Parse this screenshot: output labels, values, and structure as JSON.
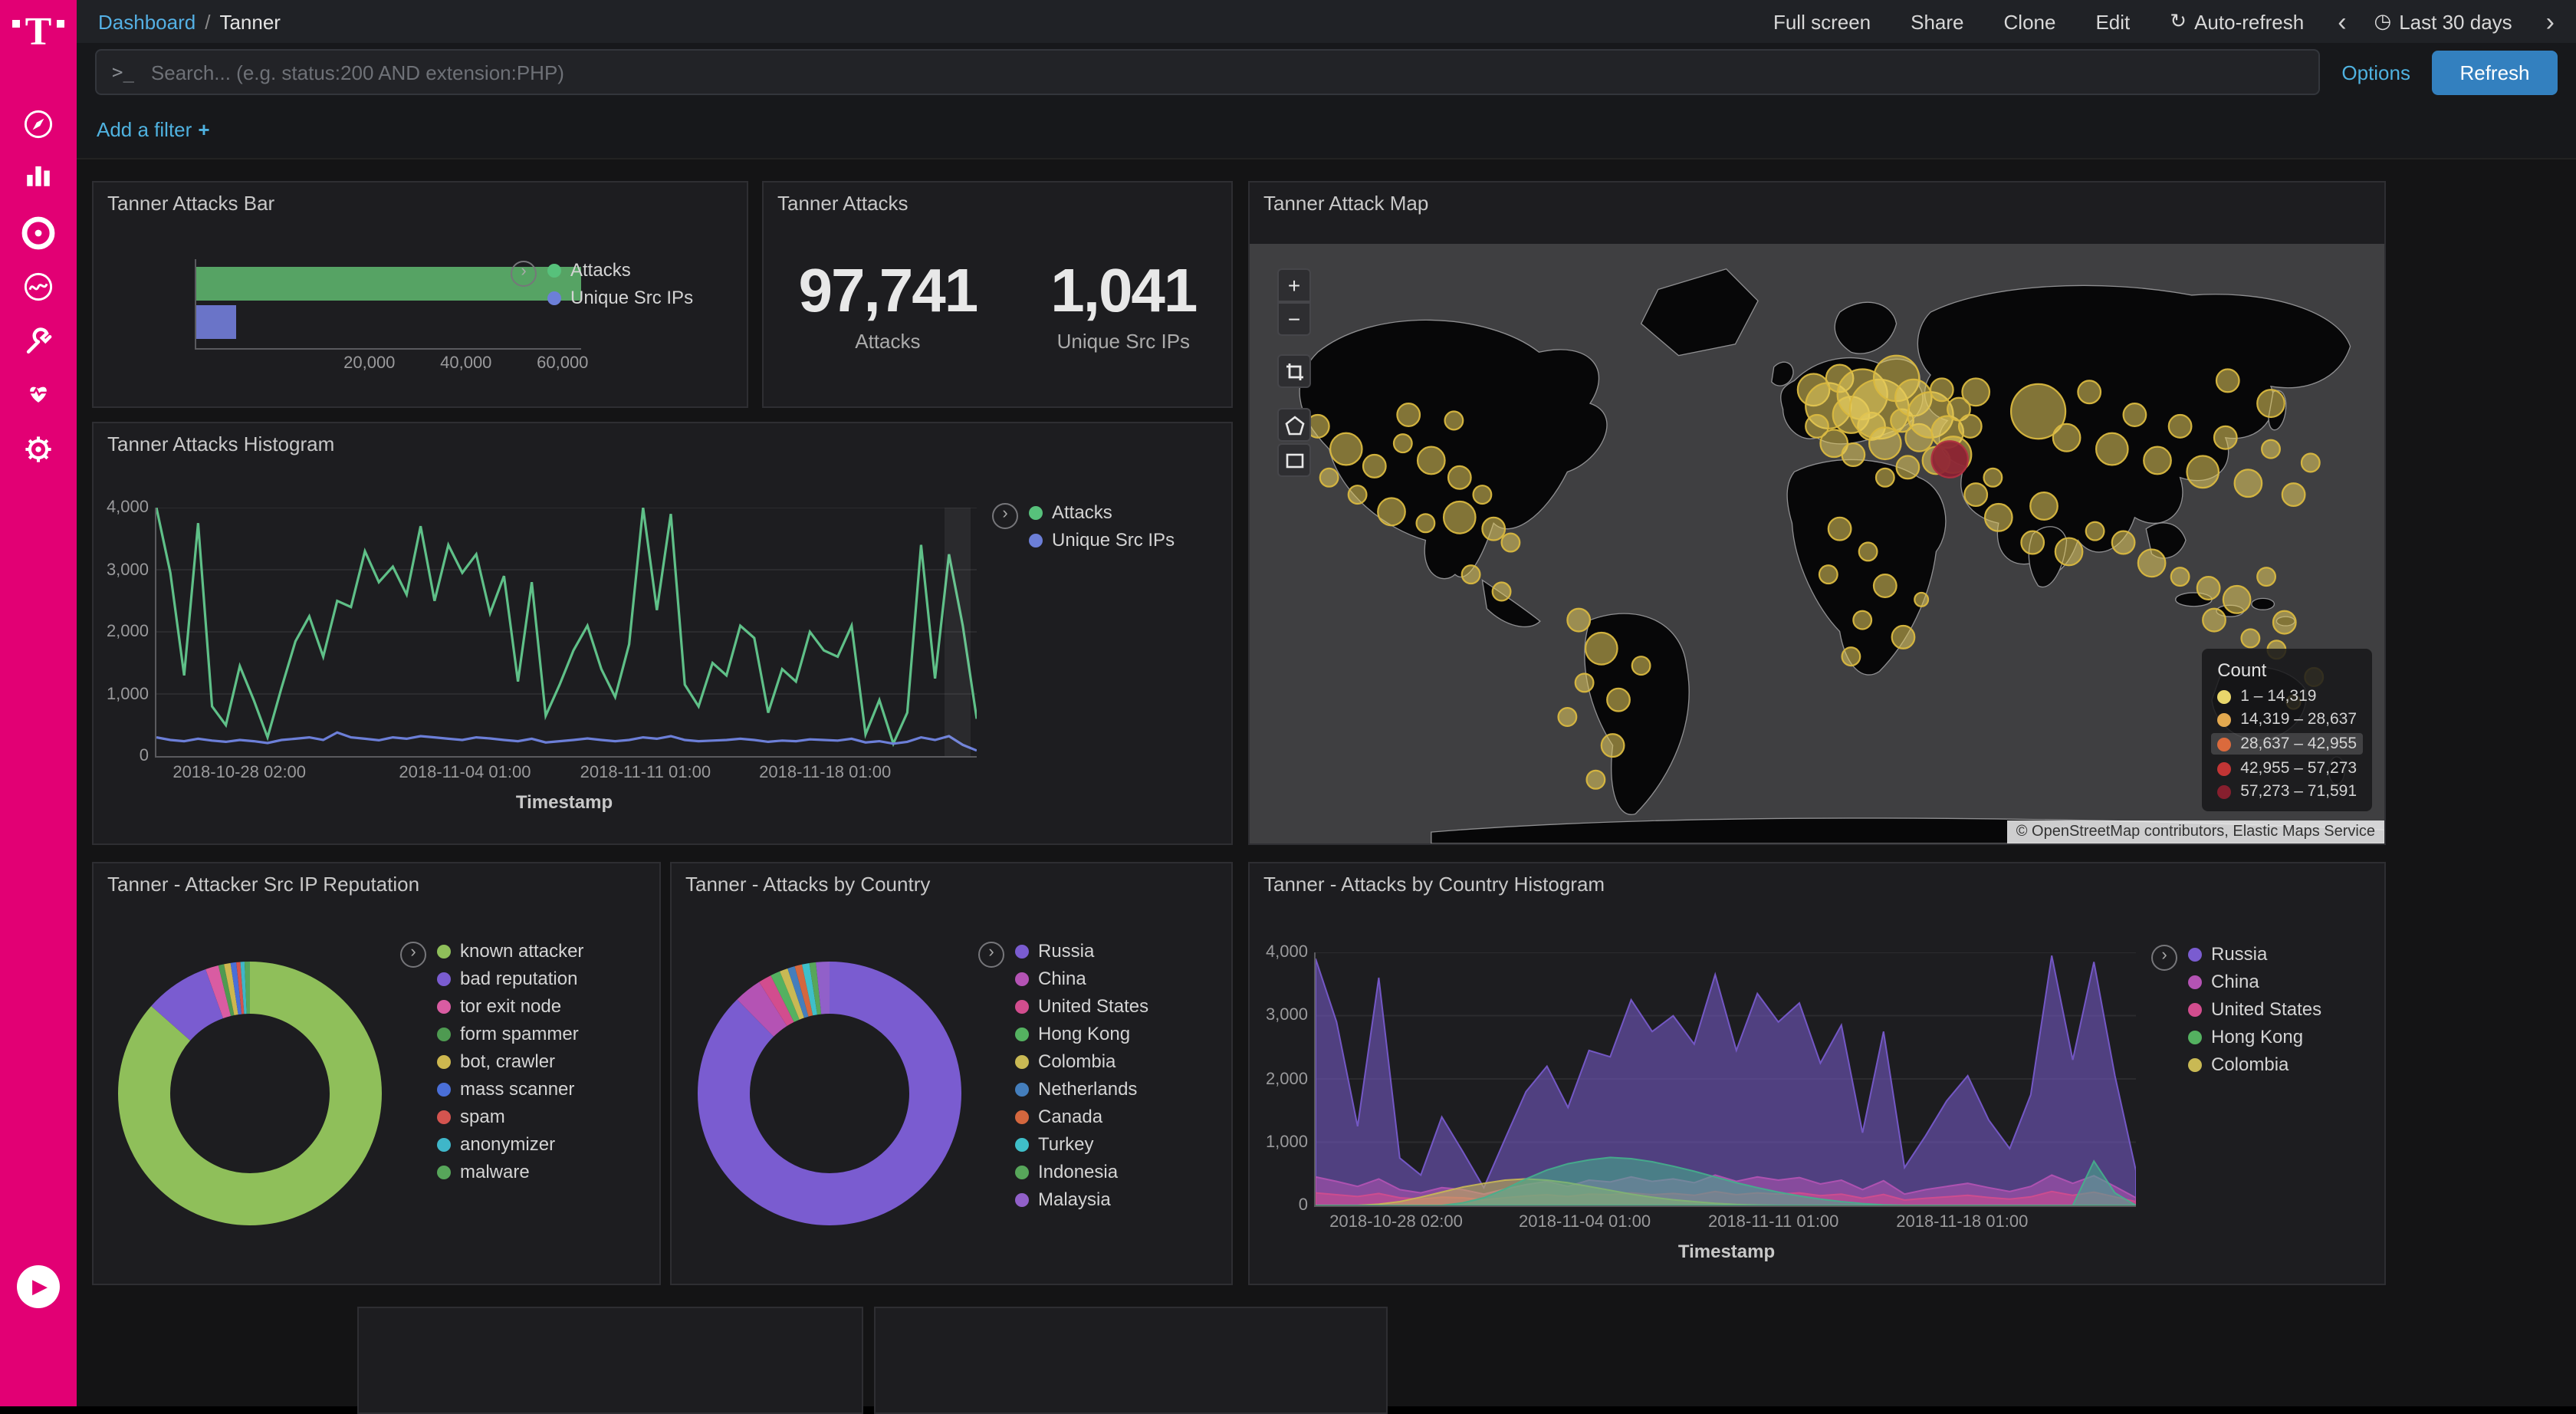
{
  "sidebar": {
    "logo": "T",
    "icons": [
      "discover",
      "visualize",
      "dashboard",
      "timelion",
      "dev-tools",
      "monitoring",
      "management",
      "collapse-play"
    ]
  },
  "topbar": {
    "breadcrumb": {
      "link": "Dashboard",
      "sep": "/",
      "current": "Tanner"
    },
    "actions": [
      "Full screen",
      "Share",
      "Clone",
      "Edit"
    ],
    "auto_refresh_icon": "↻",
    "auto_refresh": "Auto-refresh",
    "prev": "‹",
    "clock_icon": "◷",
    "time_range": "Last 30 days",
    "next": "›"
  },
  "searchbar": {
    "prompt": ">_",
    "placeholder": "Search... (e.g. status:200 AND extension:PHP)",
    "options": "Options",
    "refresh": "Refresh"
  },
  "filterbar": {
    "add_label": "Add a filter",
    "plus": "+"
  },
  "panels": {
    "attacks_bar": {
      "title": "Tanner Attacks Bar",
      "legend": [
        {
          "label": "Attacks",
          "color": "#57c17b"
        },
        {
          "label": "Unique Src IPs",
          "color": "#6c7fd8"
        }
      ],
      "bars": [
        {
          "label": "Attacks",
          "value": "97,741",
          "color": "#56a364",
          "pct": 100
        },
        {
          "label": "Unique Src IPs",
          "value": "1,041",
          "color": "#6a74c8",
          "pct": 10.7
        }
      ],
      "ticks": [
        {
          "label": "20,000",
          "pos": 0.452
        },
        {
          "label": "40,000",
          "pos": 0.702
        },
        {
          "label": "60,000",
          "pos": 0.952
        }
      ]
    },
    "attacks_metric": {
      "title": "Tanner Attacks",
      "metrics": [
        {
          "value": "97,741",
          "label": "Attacks"
        },
        {
          "value": "1,041",
          "label": "Unique Src IPs"
        }
      ]
    },
    "attack_map": {
      "title": "Tanner Attack Map",
      "controls": {
        "zoom_in": "+",
        "zoom_out": "−"
      },
      "legend_title": "Count",
      "legend": [
        {
          "label": "1 – 14,319",
          "color": "#e9d66b"
        },
        {
          "label": "14,319 – 28,637",
          "color": "#e3a94f"
        },
        {
          "label": "28,637 – 42,955",
          "color": "#db6a3c",
          "hl": true
        },
        {
          "label": "42,955 – 57,273",
          "color": "#c23535"
        },
        {
          "label": "57,273 – 71,591",
          "color": "#871f2e"
        }
      ],
      "attribution": "© OpenStreetMap contributors, Elastic Maps Service",
      "markers": [
        [
          60,
          160,
          10
        ],
        [
          85,
          180,
          14
        ],
        [
          110,
          195,
          10
        ],
        [
          135,
          175,
          8
        ],
        [
          160,
          190,
          12
        ],
        [
          185,
          205,
          10
        ],
        [
          95,
          220,
          8
        ],
        [
          125,
          235,
          12
        ],
        [
          155,
          245,
          8
        ],
        [
          185,
          240,
          14
        ],
        [
          205,
          220,
          8
        ],
        [
          70,
          205,
          8
        ],
        [
          215,
          250,
          10
        ],
        [
          230,
          262,
          8
        ],
        [
          180,
          155,
          8
        ],
        [
          140,
          150,
          10
        ],
        [
          195,
          290,
          8
        ],
        [
          222,
          305,
          8
        ],
        [
          290,
          330,
          10
        ],
        [
          310,
          355,
          14
        ],
        [
          295,
          385,
          8
        ],
        [
          325,
          400,
          10
        ],
        [
          280,
          415,
          8
        ],
        [
          320,
          440,
          10
        ],
        [
          345,
          370,
          8
        ],
        [
          305,
          470,
          8
        ],
        [
          497,
          128,
          14
        ],
        [
          510,
          142,
          20
        ],
        [
          520,
          118,
          12
        ],
        [
          500,
          160,
          10
        ],
        [
          515,
          175,
          12
        ],
        [
          530,
          150,
          16
        ],
        [
          540,
          132,
          22
        ],
        [
          548,
          160,
          12
        ],
        [
          532,
          185,
          10
        ],
        [
          555,
          145,
          26
        ],
        [
          560,
          175,
          14
        ],
        [
          570,
          118,
          20
        ],
        [
          575,
          155,
          10
        ],
        [
          585,
          135,
          16
        ],
        [
          590,
          170,
          12
        ],
        [
          600,
          150,
          20
        ],
        [
          610,
          128,
          10
        ],
        [
          615,
          165,
          14
        ],
        [
          625,
          145,
          10
        ],
        [
          605,
          190,
          12
        ],
        [
          580,
          196,
          10
        ],
        [
          560,
          205,
          8
        ],
        [
          620,
          185,
          16
        ],
        [
          635,
          160,
          10
        ],
        [
          640,
          130,
          12
        ],
        [
          695,
          147,
          24
        ],
        [
          720,
          170,
          12
        ],
        [
          740,
          130,
          10
        ],
        [
          760,
          180,
          14
        ],
        [
          780,
          150,
          10
        ],
        [
          800,
          190,
          12
        ],
        [
          820,
          160,
          10
        ],
        [
          840,
          200,
          14
        ],
        [
          860,
          170,
          10
        ],
        [
          880,
          210,
          12
        ],
        [
          900,
          180,
          8
        ],
        [
          920,
          220,
          10
        ],
        [
          935,
          192,
          8
        ],
        [
          862,
          120,
          10
        ],
        [
          900,
          140,
          12
        ],
        [
          640,
          220,
          10
        ],
        [
          660,
          240,
          12
        ],
        [
          655,
          205,
          8
        ],
        [
          700,
          230,
          12
        ],
        [
          690,
          262,
          10
        ],
        [
          722,
          270,
          12
        ],
        [
          745,
          252,
          8
        ],
        [
          770,
          262,
          10
        ],
        [
          795,
          280,
          12
        ],
        [
          820,
          292,
          8
        ],
        [
          845,
          302,
          10
        ],
        [
          870,
          312,
          12
        ],
        [
          896,
          292,
          8
        ],
        [
          850,
          330,
          10
        ],
        [
          882,
          346,
          8
        ],
        [
          912,
          332,
          10
        ],
        [
          520,
          250,
          10
        ],
        [
          545,
          270,
          8
        ],
        [
          510,
          290,
          8
        ],
        [
          560,
          300,
          10
        ],
        [
          540,
          330,
          8
        ],
        [
          576,
          345,
          10
        ],
        [
          530,
          362,
          8
        ],
        [
          592,
          312,
          6
        ],
        [
          905,
          356,
          8
        ],
        [
          938,
          380,
          8
        ],
        [
          920,
          402,
          6
        ],
        [
          617,
          189,
          16,
          "#8c1f33"
        ]
      ]
    },
    "attacks_histogram": {
      "title": "Tanner Attacks Histogram",
      "legend": [
        {
          "label": "Attacks",
          "color": "#57c17b"
        },
        {
          "label": "Unique Src IPs",
          "color": "#6c7fd8"
        }
      ],
      "y_ticks": [
        {
          "label": "4,000",
          "pos": 0
        },
        {
          "label": "3,000",
          "pos": 0.25
        },
        {
          "label": "2,000",
          "pos": 0.5
        },
        {
          "label": "1,000",
          "pos": 0.75
        },
        {
          "label": "0",
          "pos": 1
        }
      ],
      "x_ticks": [
        {
          "label": "2018-10-28 02:00",
          "pos": 0.103
        },
        {
          "label": "2018-11-04 01:00",
          "pos": 0.378
        },
        {
          "label": "2018-11-11 01:00",
          "pos": 0.598
        },
        {
          "label": "2018-11-18 01:00",
          "pos": 0.817
        }
      ],
      "x_label": "Timestamp",
      "y_max": 4000,
      "series": [
        {
          "name": "Attacks",
          "color": "#5fc088",
          "type": "line",
          "values": [
            4000,
            2950,
            1300,
            3750,
            800,
            500,
            1450,
            900,
            300,
            1100,
            1850,
            2250,
            1600,
            2500,
            2400,
            3300,
            2800,
            3050,
            2600,
            3700,
            2500,
            3400,
            2950,
            3250,
            2300,
            2900,
            1200,
            2800,
            650,
            1150,
            1700,
            2100,
            1400,
            950,
            1800,
            4000,
            2350,
            3900,
            1150,
            800,
            1500,
            1300,
            2100,
            1900,
            700,
            1400,
            1200,
            2000,
            1700,
            1600,
            2100,
            350,
            900,
            200,
            700,
            3400,
            1250,
            3250,
            2100,
            600
          ]
        },
        {
          "name": "Unique Src IPs",
          "color": "#6c7fd8",
          "type": "line",
          "values": [
            300,
            260,
            240,
            280,
            250,
            230,
            260,
            240,
            210,
            260,
            280,
            300,
            260,
            380,
            300,
            280,
            255,
            300,
            280,
            320,
            300,
            280,
            260,
            300,
            285,
            260,
            240,
            280,
            220,
            240,
            260,
            285,
            260,
            240,
            260,
            300,
            280,
            320,
            260,
            240,
            250,
            260,
            280,
            260,
            230,
            250,
            240,
            270,
            260,
            250,
            280,
            220,
            240,
            200,
            230,
            300,
            260,
            320,
            180,
            90
          ]
        }
      ]
    },
    "reputation": {
      "title": "Tanner - Attacker Src IP Reputation",
      "segments": [
        {
          "label": "known attacker",
          "color": "#8fbf5a",
          "pct": 86.5
        },
        {
          "label": "bad reputation",
          "color": "#7a5cd0",
          "pct": 8.0
        },
        {
          "label": "tor exit node",
          "color": "#d95ca2",
          "pct": 1.6
        },
        {
          "label": "form spammer",
          "color": "#4e9a51",
          "pct": 0.7
        },
        {
          "label": "bot, crawler",
          "color": "#cdb74f",
          "pct": 0.8
        },
        {
          "label": "mass scanner",
          "color": "#4a6fd8",
          "pct": 0.7
        },
        {
          "label": "spam",
          "color": "#d4544f",
          "pct": 0.5
        },
        {
          "label": "anonymizer",
          "color": "#3fb6c9",
          "pct": 0.5
        },
        {
          "label": "malware",
          "color": "#57a65a",
          "pct": 0.7
        }
      ]
    },
    "by_country": {
      "title": "Tanner - Attacks by Country",
      "segments": [
        {
          "label": "Russia",
          "color": "#7a5cd0",
          "pct": 87.6
        },
        {
          "label": "China",
          "color": "#b453b4",
          "pct": 3.4
        },
        {
          "label": "United States",
          "color": "#d24d8e",
          "pct": 1.6
        },
        {
          "label": "Hong Kong",
          "color": "#54b160",
          "pct": 1.2
        },
        {
          "label": "Colombia",
          "color": "#c9b954",
          "pct": 1.0
        },
        {
          "label": "Netherlands",
          "color": "#447ebc",
          "pct": 0.9
        },
        {
          "label": "Canada",
          "color": "#d4673e",
          "pct": 0.9
        },
        {
          "label": "Turkey",
          "color": "#3fbfc9",
          "pct": 0.9
        },
        {
          "label": "Indonesia",
          "color": "#57a65a",
          "pct": 0.8
        },
        {
          "label": "Malaysia",
          "color": "#9160c9",
          "pct": 1.7
        }
      ]
    },
    "country_histogram": {
      "title": "Tanner - Attacks by Country Histogram",
      "legend": [
        {
          "label": "Russia",
          "color": "#7a5cd0"
        },
        {
          "label": "China",
          "color": "#b453b4"
        },
        {
          "label": "United States",
          "color": "#d24d8e"
        },
        {
          "label": "Hong Kong",
          "color": "#54b160"
        },
        {
          "label": "Colombia",
          "color": "#c9b954"
        }
      ],
      "y_ticks": [
        {
          "label": "4,000",
          "pos": 0
        },
        {
          "label": "3,000",
          "pos": 0.25
        },
        {
          "label": "2,000",
          "pos": 0.5
        },
        {
          "label": "1,000",
          "pos": 0.75
        },
        {
          "label": "0",
          "pos": 1
        }
      ],
      "x_ticks": [
        {
          "label": "2018-10-28 02:00",
          "pos": 0.1
        },
        {
          "label": "2018-11-04 01:00",
          "pos": 0.33
        },
        {
          "label": "2018-11-11 01:00",
          "pos": 0.56
        },
        {
          "label": "2018-11-18 01:00",
          "pos": 0.79
        }
      ],
      "x_label": "Timestamp",
      "y_max": 4000,
      "series": [
        {
          "name": "Russia",
          "color": "#7a5cd0",
          "type": "area",
          "values": [
            3900,
            2900,
            1250,
            3600,
            750,
            480,
            1400,
            850,
            280,
            1050,
            1800,
            2200,
            1550,
            2450,
            2350,
            3250,
            2750,
            3000,
            2550,
            3650,
            2450,
            3350,
            2900,
            3200,
            2250,
            2850,
            1150,
            2750,
            600,
            1100,
            1650,
            2050,
            1350,
            900,
            1750,
            3950,
            2300,
            3850,
            2050,
            550
          ]
        },
        {
          "name": "China",
          "color": "#b453b4",
          "type": "area",
          "values": [
            450,
            380,
            300,
            420,
            250,
            200,
            280,
            250,
            180,
            260,
            330,
            380,
            300,
            400,
            370,
            450,
            380,
            420,
            360,
            480,
            380,
            450,
            400,
            440,
            340,
            400,
            250,
            390,
            180,
            250,
            300,
            350,
            280,
            220,
            300,
            480,
            350,
            470,
            300,
            120
          ]
        },
        {
          "name": "United States",
          "color": "#d24d8e",
          "type": "area",
          "values": [
            200,
            170,
            140,
            190,
            120,
            100,
            130,
            120,
            90,
            120,
            150,
            170,
            140,
            180,
            170,
            200,
            170,
            190,
            160,
            220,
            170,
            200,
            180,
            200,
            155,
            180,
            115,
            175,
            85,
            115,
            135,
            160,
            125,
            100,
            135,
            220,
            160,
            210,
            135,
            60
          ]
        },
        {
          "name": "Colombia",
          "color": "#c9b954",
          "type": "area",
          "values": [
            0,
            0,
            0,
            20,
            60,
            130,
            210,
            290,
            350,
            400,
            420,
            400,
            360,
            300,
            240,
            180,
            130,
            90,
            60,
            35,
            15,
            5,
            0,
            0,
            0,
            0,
            0,
            0,
            0,
            0,
            0,
            0,
            0,
            0,
            0,
            0,
            0,
            0,
            0,
            0
          ]
        },
        {
          "name": "Hong Kong",
          "color": "#45b08c",
          "type": "area",
          "values": [
            0,
            0,
            0,
            0,
            0,
            0,
            0,
            40,
            120,
            260,
            420,
            560,
            660,
            720,
            760,
            740,
            690,
            620,
            540,
            450,
            360,
            280,
            210,
            150,
            100,
            60,
            30,
            10,
            0,
            0,
            0,
            0,
            0,
            0,
            0,
            0,
            0,
            700,
            200,
            0
          ]
        }
      ]
    }
  }
}
